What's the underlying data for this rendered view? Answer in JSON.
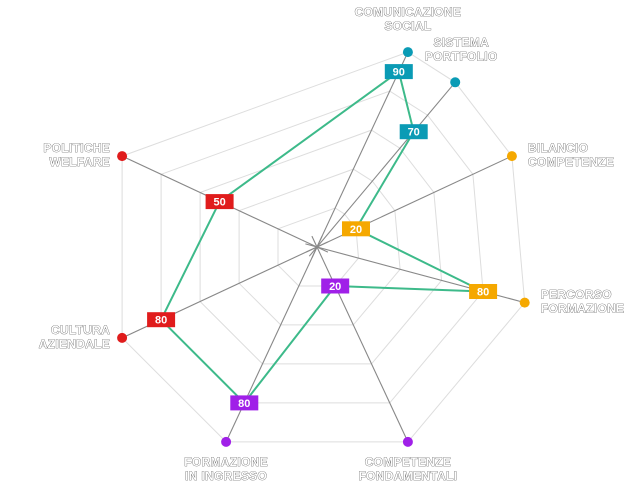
{
  "chart_data": {
    "type": "radar",
    "rmax": 100,
    "grid_levels": [
      20,
      40,
      60,
      80,
      100
    ],
    "line_color": "#3dba8a",
    "spoke_color": "#888888",
    "grid_color": "#dddddd",
    "axes": [
      {
        "label_lines": [
          "COMUNICAZIONE",
          "SOCIAL"
        ],
        "value": 90,
        "color": "#0a9bb5"
      },
      {
        "label_lines": [
          "SISTEMA",
          "PORTFOLIO"
        ],
        "value": 70,
        "color": "#0a9bb5"
      },
      {
        "label_lines": [
          "BILANCIO",
          "COMPETENZE"
        ],
        "value": 20,
        "color": "#f5a800"
      },
      {
        "label_lines": [
          "PERCORSO",
          "FORMAZIONE"
        ],
        "value": 80,
        "color": "#f5a800"
      },
      {
        "label_lines": [
          "COMPETENZE",
          "FONDAMENTALI"
        ],
        "value": 20,
        "color": "#a020e8"
      },
      {
        "label_lines": [
          "FORMAZIONE",
          "IN INGRESSO"
        ],
        "value": 80,
        "color": "#a020e8"
      },
      {
        "label_lines": [
          "CULTURA",
          "AZIENDALE"
        ],
        "value": 80,
        "color": "#e01c1c"
      },
      {
        "label_lines": [
          "POLITICHE",
          "WELFARE"
        ],
        "value": 50,
        "color": "#e01c1c"
      }
    ]
  }
}
